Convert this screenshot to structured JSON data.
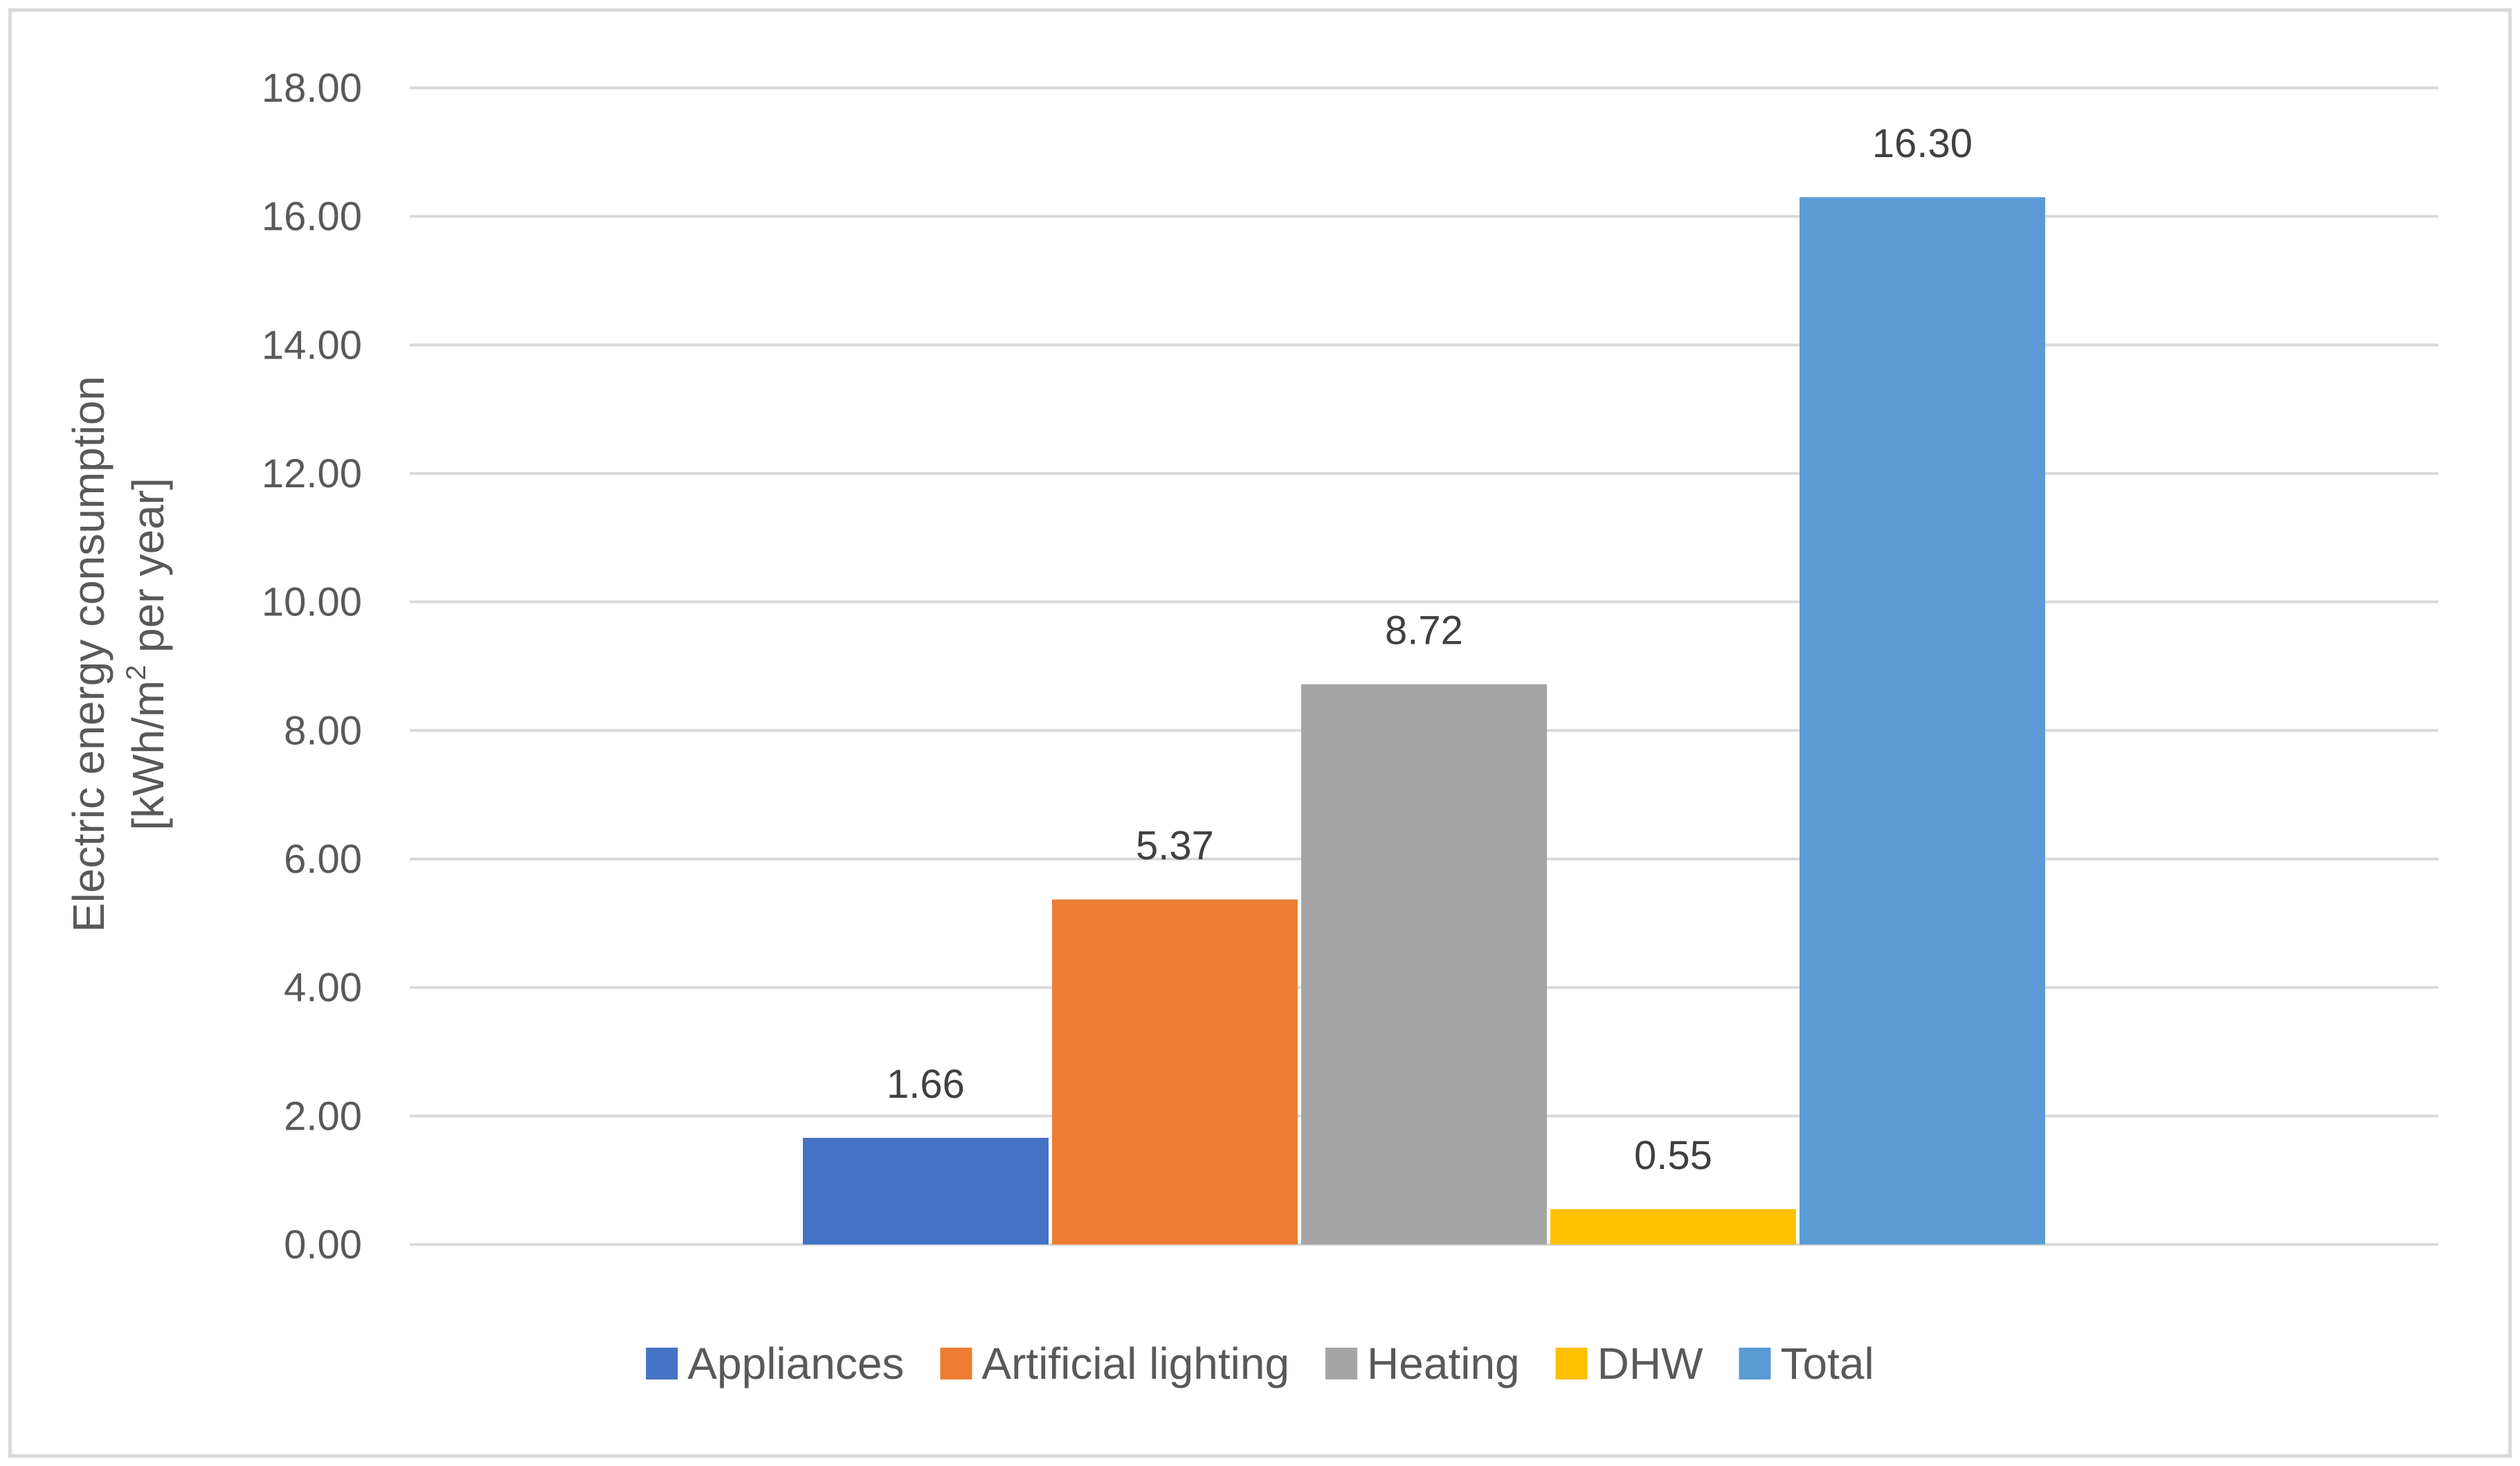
{
  "chart_data": {
    "type": "bar",
    "title": "",
    "xlabel": "",
    "ylabel_line1": "Electric energy consumption",
    "ylabel_line2_prefix": "[kWh/m",
    "ylabel_line2_sup": "2",
    "ylabel_line2_suffix": " per year]",
    "ylim": [
      0,
      18
    ],
    "y_tick_step": 2,
    "y_tick_labels": [
      "0.00",
      "2.00",
      "4.00",
      "6.00",
      "8.00",
      "10.00",
      "12.00",
      "14.00",
      "16.00",
      "18.00"
    ],
    "grid": true,
    "legend_position": "bottom",
    "series": [
      {
        "name": "Appliances",
        "value": 1.66,
        "label": "1.66",
        "color": "#4472C4"
      },
      {
        "name": "Artificial lighting",
        "value": 5.37,
        "label": "5.37",
        "color": "#ED7D31"
      },
      {
        "name": "Heating",
        "value": 8.72,
        "label": "8.72",
        "color": "#A5A5A5"
      },
      {
        "name": "DHW",
        "value": 0.55,
        "label": "0.55",
        "color": "#FFC000"
      },
      {
        "name": "Total",
        "value": 16.3,
        "label": "16.30",
        "color": "#5B9BD5"
      }
    ],
    "gridline_color": "#d9d9d9"
  }
}
